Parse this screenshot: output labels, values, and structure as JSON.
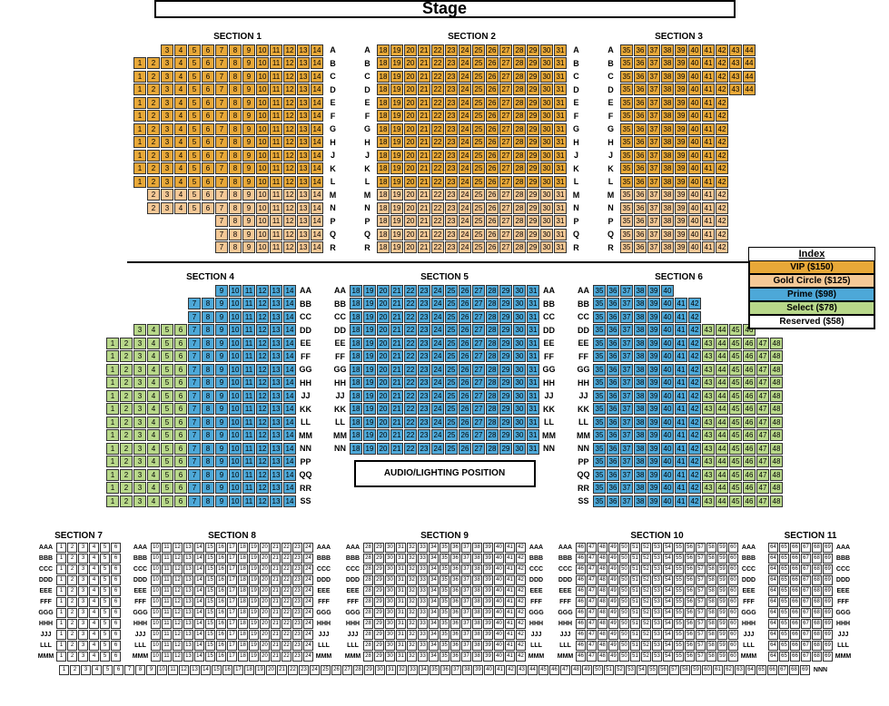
{
  "stage_label": "Stage",
  "audio_label": "AUDIO/LIGHTING POSITION",
  "index": {
    "title": "Index",
    "tiers": [
      {
        "label": "VIP ($150)",
        "color": "#e8a838"
      },
      {
        "label": "Gold Circle ($125)",
        "color": "#f4c896"
      },
      {
        "label": "Prime ($98)",
        "color": "#4da8d8"
      },
      {
        "label": "Select ($78)",
        "color": "#b8d88a"
      },
      {
        "label": "Reserved ($58)",
        "color": "#ffffff"
      }
    ]
  },
  "sections": {
    "upper": [
      {
        "name": "SECTION 1",
        "rows": [
          "A",
          "B",
          "C",
          "D",
          "E",
          "F",
          "G",
          "H",
          "J",
          "K",
          "L",
          "M",
          "N",
          "P",
          "Q",
          "R"
        ],
        "seat_start": 1,
        "seat_end": 14,
        "stagger": "left"
      },
      {
        "name": "SECTION 2",
        "rows": [
          "A",
          "B",
          "C",
          "D",
          "E",
          "F",
          "G",
          "H",
          "J",
          "K",
          "L",
          "M",
          "N",
          "P",
          "Q",
          "R"
        ],
        "seat_start": 18,
        "seat_end": 31
      },
      {
        "name": "SECTION 3",
        "rows": [
          "A",
          "B",
          "C",
          "D",
          "E",
          "F",
          "G",
          "H",
          "J",
          "K",
          "L",
          "M",
          "N",
          "P",
          "Q",
          "R"
        ],
        "seat_start": 35,
        "seat_end": 44,
        "stagger": "right"
      }
    ],
    "lower": [
      {
        "name": "SECTION 4",
        "rows": [
          "AA",
          "BB",
          "CC",
          "DD",
          "EE",
          "FF",
          "GG",
          "HH",
          "JJ",
          "KK",
          "LL",
          "MM",
          "NN",
          "PP",
          "QQ",
          "RR",
          "SS"
        ],
        "seat_start": 1,
        "seat_end": 14,
        "stagger": "left"
      },
      {
        "name": "SECTION 5",
        "rows": [
          "AA",
          "BB",
          "CC",
          "DD",
          "EE",
          "FF",
          "GG",
          "HH",
          "JJ",
          "KK",
          "LL",
          "MM",
          "NN"
        ],
        "seat_start": 18,
        "seat_end": 31
      },
      {
        "name": "SECTION 6",
        "rows": [
          "AA",
          "BB",
          "CC",
          "DD",
          "EE",
          "FF",
          "GG",
          "HH",
          "JJ",
          "KK",
          "LL",
          "MM",
          "NN",
          "PP",
          "QQ",
          "RR",
          "SS"
        ],
        "seat_start": 35,
        "seat_end": 48,
        "stagger": "right"
      }
    ],
    "balcony": [
      {
        "name": "SECTION 7",
        "rows": [
          "AAA",
          "BBB",
          "CCC",
          "DDD",
          "EEE",
          "FFF",
          "GGG",
          "HHH",
          "JJJ",
          "LLL",
          "MMM"
        ],
        "seat_start": 1,
        "seat_end": 6
      },
      {
        "name": "SECTION 8",
        "rows": [
          "AAA",
          "BBB",
          "CCC",
          "DDD",
          "EEE",
          "FFF",
          "GGG",
          "HHH",
          "JJJ",
          "LLL",
          "MMM"
        ],
        "seat_start": 10,
        "seat_end": 24
      },
      {
        "name": "SECTION 9",
        "rows": [
          "AAA",
          "BBB",
          "CCC",
          "DDD",
          "EEE",
          "FFF",
          "GGG",
          "HHH",
          "JJJ",
          "LLL",
          "MMM"
        ],
        "seat_start": 28,
        "seat_end": 42
      },
      {
        "name": "SECTION 10",
        "rows": [
          "AAA",
          "BBB",
          "CCC",
          "DDD",
          "EEE",
          "FFF",
          "GGG",
          "HHH",
          "JJJ",
          "LLL",
          "MMM"
        ],
        "seat_start": 46,
        "seat_end": 60
      },
      {
        "name": "SECTION 11",
        "rows": [
          "AAA",
          "BBB",
          "CCC",
          "DDD",
          "EEE",
          "FFF",
          "GGG",
          "HHH",
          "JJJ",
          "LLL",
          "MMM"
        ],
        "seat_start": 64,
        "seat_end": 69
      }
    ],
    "balcony_last_row": {
      "label": "NNN",
      "seat_start": 1,
      "seat_end": 69
    }
  },
  "colors": {
    "vip": "#e8a838",
    "gold": "#f4c896",
    "prime": "#4da8d8",
    "select": "#b8d88a",
    "reserved": "#ffffff",
    "gap": "#888888"
  }
}
